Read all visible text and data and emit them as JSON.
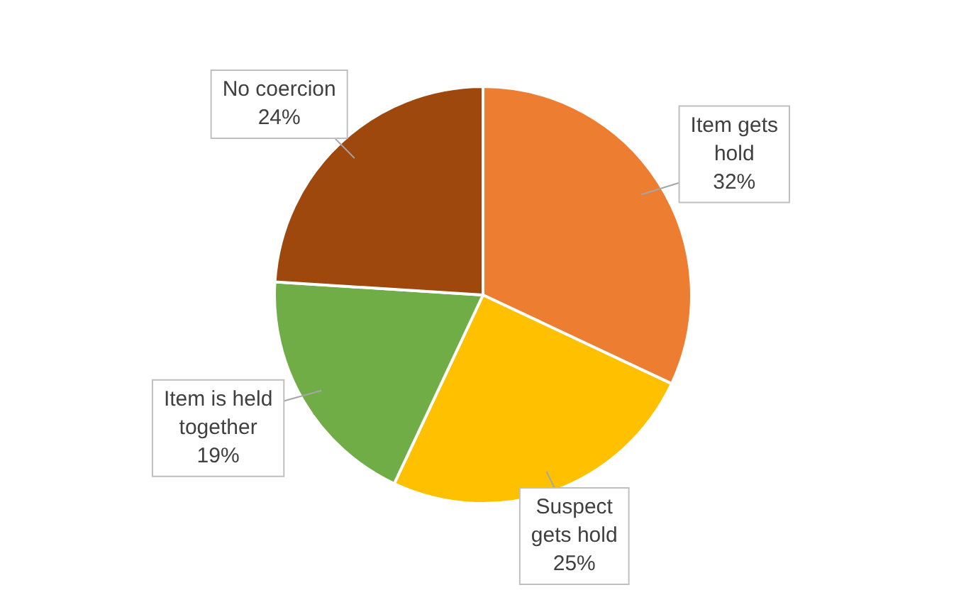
{
  "chart_data": {
    "type": "pie",
    "categories": [
      "Item gets hold",
      "Suspect gets hold",
      "Item is held together",
      "No coercion"
    ],
    "values": [
      32,
      25,
      19,
      24
    ],
    "colors": [
      "#ed7d31",
      "#ffc000",
      "#70ad47",
      "#9e480e"
    ],
    "value_labels": [
      "32%",
      "25%",
      "19%",
      "24%"
    ],
    "legend": false
  }
}
